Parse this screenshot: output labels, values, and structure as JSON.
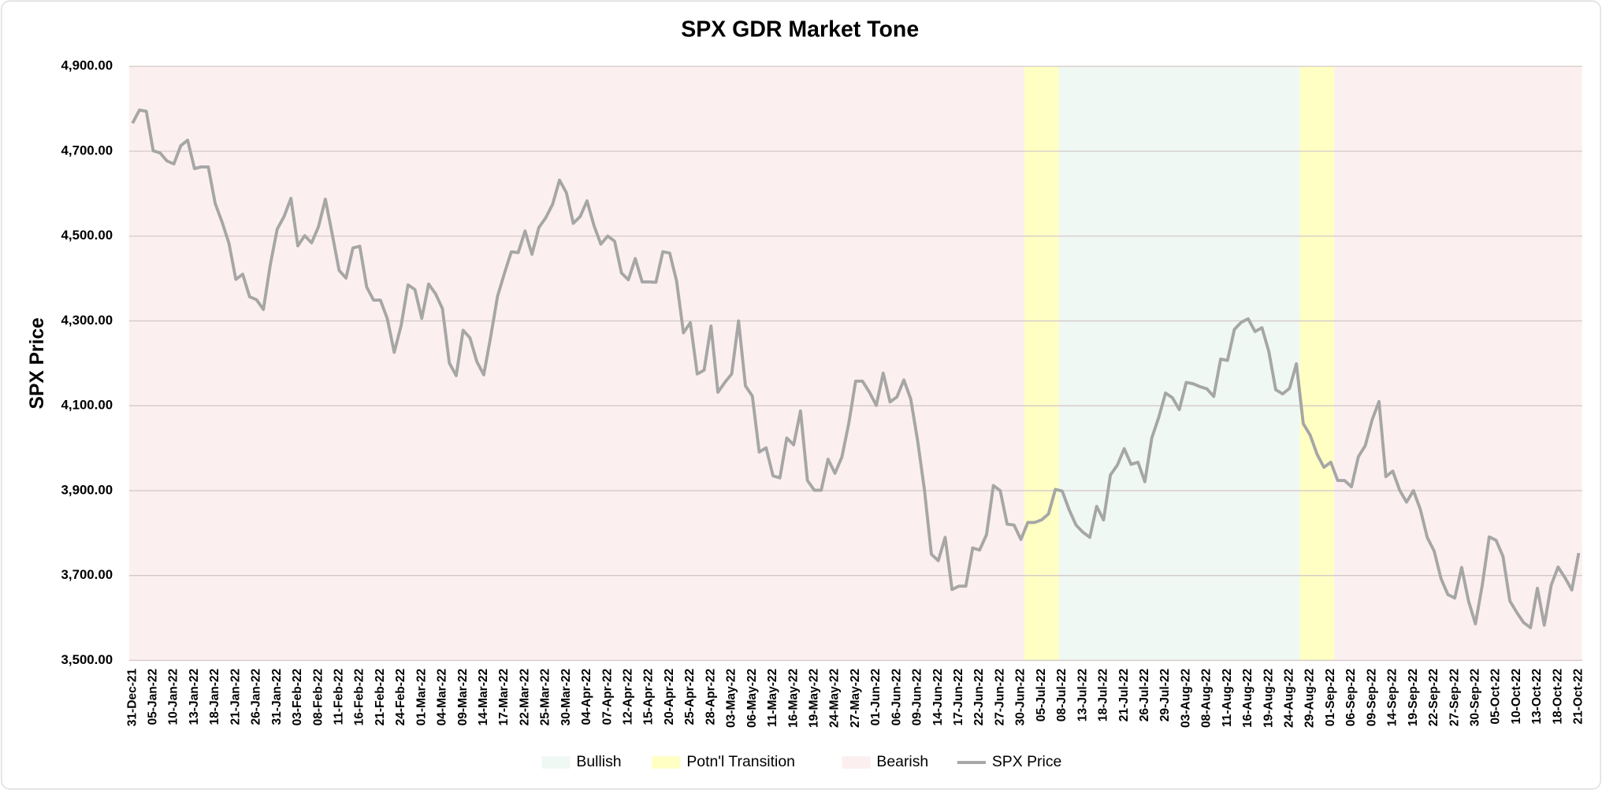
{
  "chart_data": {
    "type": "line",
    "title": "SPX GDR Market Tone",
    "y_label": "SPX Price",
    "ylim": [
      3500,
      4900
    ],
    "yticks": [
      {
        "value": 3500,
        "label": "3,500.00"
      },
      {
        "value": 3700,
        "label": "3,700.00"
      },
      {
        "value": 3900,
        "label": "3,900.00"
      },
      {
        "value": 4100,
        "label": "4,100.00"
      },
      {
        "value": 4300,
        "label": "4,300.00"
      },
      {
        "value": 4500,
        "label": "4,500.00"
      },
      {
        "value": 4700,
        "label": "4,700.00"
      },
      {
        "value": 4900,
        "label": "4,900.00"
      }
    ],
    "grid": true,
    "legend": "bottom",
    "categories": [
      "31-Dec-21",
      null,
      null,
      "05-Jan-22",
      null,
      null,
      "10-Jan-22",
      null,
      null,
      "13-Jan-22",
      null,
      null,
      "18-Jan-22",
      null,
      null,
      "21-Jan-22",
      null,
      null,
      "26-Jan-22",
      null,
      null,
      "31-Jan-22",
      null,
      null,
      "03-Feb-22",
      null,
      null,
      "08-Feb-22",
      null,
      null,
      "11-Feb-22",
      null,
      null,
      "16-Feb-22",
      null,
      null,
      "21-Feb-22",
      null,
      null,
      "24-Feb-22",
      null,
      null,
      "01-Mar-22",
      null,
      null,
      "04-Mar-22",
      null,
      null,
      "09-Mar-22",
      null,
      null,
      "14-Mar-22",
      null,
      null,
      "17-Mar-22",
      null,
      null,
      "22-Mar-22",
      null,
      null,
      "25-Mar-22",
      null,
      null,
      "30-Mar-22",
      null,
      null,
      "04-Apr-22",
      null,
      null,
      "07-Apr-22",
      null,
      null,
      "12-Apr-22",
      null,
      null,
      "15-Apr-22",
      null,
      null,
      "20-Apr-22",
      null,
      null,
      "25-Apr-22",
      null,
      null,
      "28-Apr-22",
      null,
      null,
      "03-May-22",
      null,
      null,
      "06-May-22",
      null,
      null,
      "11-May-22",
      null,
      null,
      "16-May-22",
      null,
      null,
      "19-May-22",
      null,
      null,
      "24-May-22",
      null,
      null,
      "27-May-22",
      null,
      null,
      "01-Jun-22",
      null,
      null,
      "06-Jun-22",
      null,
      null,
      "09-Jun-22",
      null,
      null,
      "14-Jun-22",
      null,
      null,
      "17-Jun-22",
      null,
      null,
      "22-Jun-22",
      null,
      null,
      "27-Jun-22",
      null,
      null,
      "30-Jun-22",
      null,
      null,
      "05-Jul-22",
      null,
      null,
      "08-Jul-22",
      null,
      null,
      "13-Jul-22",
      null,
      null,
      "18-Jul-22",
      null,
      null,
      "21-Jul-22",
      null,
      null,
      "26-Jul-22",
      null,
      null,
      "29-Jul-22",
      null,
      null,
      "03-Aug-22",
      null,
      null,
      "08-Aug-22",
      null,
      null,
      "11-Aug-22",
      null,
      null,
      "16-Aug-22",
      null,
      null,
      "19-Aug-22",
      null,
      null,
      "24-Aug-22",
      null,
      null,
      "29-Aug-22",
      null,
      null,
      "01-Sep-22",
      null,
      null,
      "06-Sep-22",
      null,
      null,
      "09-Sep-22",
      null,
      null,
      "14-Sep-22",
      null,
      null,
      "19-Sep-22",
      null,
      null,
      "22-Sep-22",
      null,
      null,
      "27-Sep-22",
      null,
      null,
      "30-Sep-22",
      null,
      null,
      "05-Oct-22",
      null,
      null,
      "10-Oct-22",
      null,
      null,
      "13-Oct-22",
      null,
      null,
      "18-Oct-22",
      null,
      null,
      "21-Oct-22"
    ],
    "series": [
      {
        "name": "Bullish",
        "color": "#eff8f3",
        "kind": "band",
        "ranges": [
          [
            135,
            169
          ]
        ]
      },
      {
        "name": "Potn'l Transition",
        "color": "#ffffc4",
        "kind": "band",
        "ranges": [
          [
            130,
            134
          ],
          [
            170,
            174
          ]
        ]
      },
      {
        "name": "Bearish",
        "color": "#fcefef",
        "kind": "band",
        "ranges": [
          [
            0,
            129
          ],
          [
            175,
            210
          ]
        ]
      },
      {
        "name": "SPX Price",
        "color": "#a6a6a6",
        "kind": "line",
        "values": [
          4766,
          4797,
          4794,
          4701,
          4696,
          4677,
          4670,
          4713,
          4726,
          4659,
          4663,
          4663,
          4577,
          4533,
          4483,
          4398,
          4410,
          4357,
          4350,
          4327,
          4432,
          4516,
          4546,
          4589,
          4477,
          4501,
          4484,
          4522,
          4587,
          4504,
          4419,
          4401,
          4472,
          4476,
          4380,
          4349,
          4349,
          4305,
          4226,
          4289,
          4385,
          4374,
          4306,
          4387,
          4364,
          4329,
          4201,
          4171,
          4278,
          4260,
          4204,
          4173,
          4262,
          4358,
          4412,
          4463,
          4461,
          4512,
          4457,
          4520,
          4543,
          4575,
          4632,
          4602,
          4530,
          4546,
          4583,
          4525,
          4481,
          4500,
          4488,
          4413,
          4397,
          4447,
          4392,
          4392,
          4391,
          4463,
          4460,
          4394,
          4272,
          4296,
          4175,
          4184,
          4288,
          4132,
          4155,
          4175,
          4300,
          4147,
          4123,
          3991,
          4001,
          3935,
          3930,
          4024,
          4008,
          4088,
          3924,
          3901,
          3901,
          3974,
          3941,
          3979,
          4058,
          4158,
          4158,
          4132,
          4101,
          4177,
          4109,
          4121,
          4161,
          4116,
          4018,
          3901,
          3750,
          3735,
          3790,
          3667,
          3675,
          3675,
          3765,
          3760,
          3796,
          3912,
          3900,
          3821,
          3819,
          3785,
          3825,
          3825,
          3831,
          3845,
          3903,
          3899,
          3855,
          3819,
          3802,
          3790,
          3863,
          3831,
          3937,
          3960,
          3999,
          3962,
          3967,
          3921,
          4024,
          4072,
          4130,
          4119,
          4091,
          4155,
          4152,
          4145,
          4140,
          4122,
          4210,
          4207,
          4280,
          4297,
          4305,
          4275,
          4284,
          4228,
          4138,
          4128,
          4141,
          4199,
          4058,
          4031,
          3986,
          3955,
          3967,
          3924,
          3924,
          3909,
          3980,
          4006,
          4067,
          4110,
          3933,
          3946,
          3901,
          3873,
          3900,
          3856,
          3790,
          3758,
          3693,
          3655,
          3647,
          3719,
          3640,
          3586,
          3678,
          3791,
          3783,
          3745,
          3640,
          3613,
          3589,
          3577,
          3670,
          3583,
          3677,
          3720,
          3695,
          3666,
          3753
        ]
      }
    ]
  }
}
